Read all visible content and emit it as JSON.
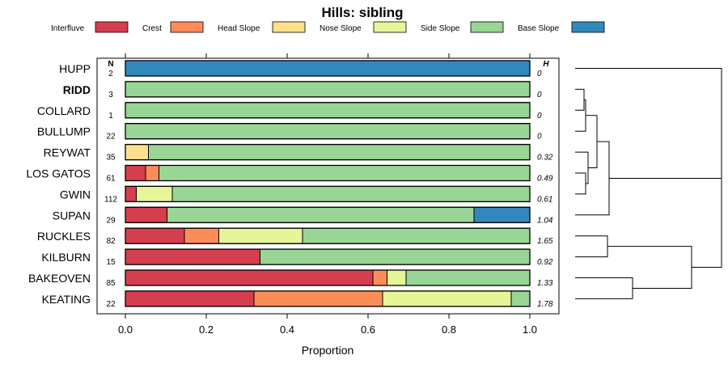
{
  "chart_data": {
    "type": "bar",
    "orientation": "horizontal-stacked-proportion",
    "title": "Hills: sibling",
    "xlabel": "Proportion",
    "xlim": [
      0,
      1
    ],
    "xticks": [
      "0.0",
      "0.2",
      "0.4",
      "0.6",
      "0.8",
      "1.0"
    ],
    "n_header": "N",
    "h_header": "H",
    "legend": {
      "placement": "top",
      "entries": [
        {
          "name": "Interfluve",
          "color": "#D53E4F"
        },
        {
          "name": "Crest",
          "color": "#FC8D59"
        },
        {
          "name": "Head Slope",
          "color": "#FEE08B"
        },
        {
          "name": "Nose Slope",
          "color": "#E6F598"
        },
        {
          "name": "Side Slope",
          "color": "#99D594"
        },
        {
          "name": "Base Slope",
          "color": "#3288BD"
        }
      ]
    },
    "rows": [
      {
        "label": "HUPP",
        "bold": false,
        "n": "2",
        "h": "0",
        "segments": [
          0,
          0,
          0,
          0,
          0,
          1.0
        ]
      },
      {
        "label": "RIDD",
        "bold": true,
        "n": "3",
        "h": "0",
        "segments": [
          0,
          0,
          0,
          0,
          1.0,
          0
        ]
      },
      {
        "label": "COLLARD",
        "bold": false,
        "n": "1",
        "h": "0",
        "segments": [
          0,
          0,
          0,
          0,
          1.0,
          0
        ]
      },
      {
        "label": "BULLUMP",
        "bold": false,
        "n": "22",
        "h": "0",
        "segments": [
          0,
          0,
          0,
          0,
          1.0,
          0
        ]
      },
      {
        "label": "REYWAT",
        "bold": false,
        "n": "35",
        "h": "0.32",
        "segments": [
          0,
          0,
          0.057,
          0,
          0.943,
          0
        ]
      },
      {
        "label": "LOS GATOS",
        "bold": false,
        "n": "61",
        "h": "0.49",
        "segments": [
          0.05,
          0.033,
          0,
          0,
          0.917,
          0
        ]
      },
      {
        "label": "GWIN",
        "bold": false,
        "n": "112",
        "h": "0.61",
        "segments": [
          0.027,
          0,
          0,
          0.089,
          0.884,
          0
        ]
      },
      {
        "label": "SUPAN",
        "bold": false,
        "n": "29",
        "h": "1.04",
        "segments": [
          0.103,
          0,
          0,
          0,
          0.759,
          0.138
        ]
      },
      {
        "label": "RUCKLES",
        "bold": false,
        "n": "82",
        "h": "1.65",
        "segments": [
          0.146,
          0.085,
          0,
          0.207,
          0.562,
          0
        ]
      },
      {
        "label": "KILBURN",
        "bold": false,
        "n": "15",
        "h": "0.92",
        "segments": [
          0.333,
          0,
          0,
          0,
          0.667,
          0
        ]
      },
      {
        "label": "BAKEOVEN",
        "bold": false,
        "n": "85",
        "h": "1.33",
        "segments": [
          0.612,
          0.035,
          0,
          0.047,
          0.306,
          0
        ]
      },
      {
        "label": "KEATING",
        "bold": false,
        "n": "22",
        "h": "1.78",
        "segments": [
          0.318,
          0.318,
          0,
          0.318,
          0.046,
          0
        ]
      }
    ]
  }
}
